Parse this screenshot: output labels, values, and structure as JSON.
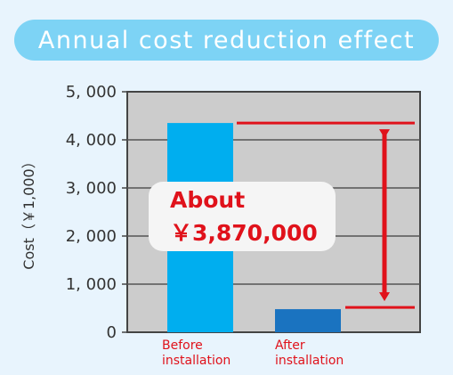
{
  "title": "Annual cost reduction effect",
  "colors": {
    "background": "#e8f4fd",
    "banner": "#7dd3f5",
    "plot_background": "#cccccc",
    "before_bar": "#00aeef",
    "after_bar": "#1a73c0",
    "annotation": "#e0121b"
  },
  "chart_data": {
    "type": "bar",
    "title": "Annual cost reduction effect",
    "xlabel": "",
    "ylabel": "Cost（￥1,000）",
    "ylim": [
      0,
      5000
    ],
    "yticks": [
      0,
      1000,
      2000,
      3000,
      4000,
      5000
    ],
    "ytick_labels": [
      "0",
      "1, 000",
      "2, 000",
      "3, 000",
      "4, 000",
      "5, 000"
    ],
    "grid": true,
    "categories": [
      [
        "Before",
        "installation"
      ],
      [
        "After",
        "installation"
      ]
    ],
    "values": [
      4350,
      480
    ],
    "annotation": {
      "line1": "About",
      "line2": "￥3,870,000"
    }
  }
}
